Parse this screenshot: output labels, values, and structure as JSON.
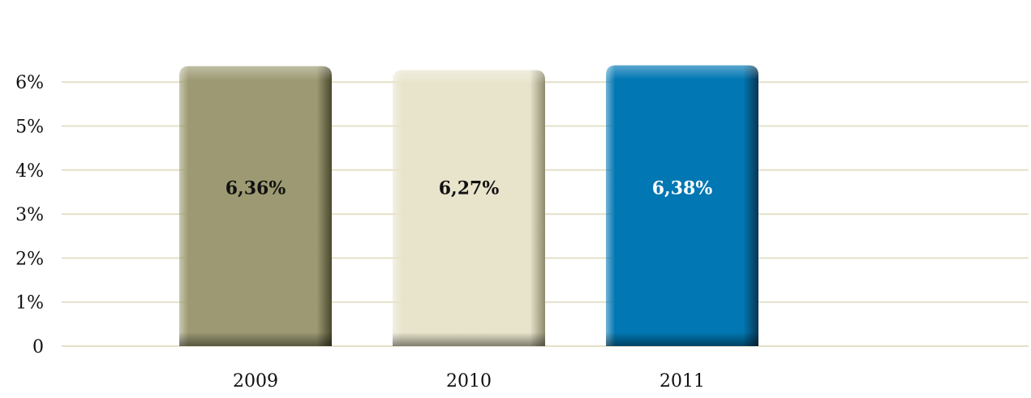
{
  "chart_data": {
    "type": "bar",
    "categories": [
      "2009",
      "2010",
      "2011"
    ],
    "values": [
      6.36,
      6.27,
      6.38
    ],
    "data_labels": [
      "6,36%",
      "6,27%",
      "6,38%"
    ],
    "y_ticks": [
      0,
      1,
      2,
      3,
      4,
      5,
      6
    ],
    "y_tick_labels": [
      "0",
      "1%",
      "2%",
      "3%",
      "4%",
      "5%",
      "6%"
    ],
    "ylim": [
      0,
      7
    ],
    "grid": true,
    "legend": "none",
    "title": "",
    "xlabel": "",
    "ylabel": ""
  },
  "colors": {
    "gridline": "#e3e0c9",
    "bars": [
      "#9d9a73",
      "#e8e4cc",
      "#0177b3"
    ],
    "bar_shadows": [
      "#4a482e",
      "#8d8a6d",
      "#0a3552"
    ],
    "label_colors": [
      "#111111",
      "#111111",
      "#ffffff"
    ]
  }
}
